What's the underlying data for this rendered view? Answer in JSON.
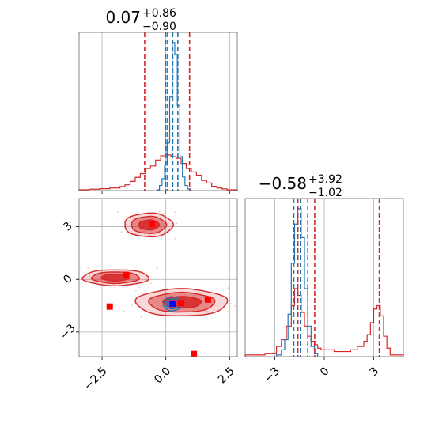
{
  "chart_data": {
    "type": "corner",
    "colors": {
      "posterior_a": "#d62728",
      "posterior_b": "#1f77b4"
    },
    "panels": [
      {
        "id": "hist-param-1",
        "type": "histogram",
        "title": {
          "value": "0.07",
          "plus": "+0.86",
          "minus": "−0.90"
        },
        "xlim": [
          -3.4,
          2.8
        ],
        "quantile_lines": {
          "posterior_a": [
            -0.83,
            0.07,
            0.93
          ],
          "posterior_b": [
            0.0,
            0.27,
            0.47
          ]
        },
        "series": [
          {
            "color_key": "posterior_a",
            "bins": [
              [
                -3.4,
                -3.0,
                0.005
              ],
              [
                -3.0,
                -2.6,
                0.008
              ],
              [
                -2.6,
                -2.2,
                0.011
              ],
              [
                -2.2,
                -1.8,
                0.015
              ],
              [
                -1.8,
                -1.6,
                0.024
              ],
              [
                -1.6,
                -1.4,
                0.034
              ],
              [
                -1.4,
                -1.2,
                0.054
              ],
              [
                -1.2,
                -1.0,
                0.078
              ],
              [
                -1.0,
                -0.8,
                0.1
              ],
              [
                -0.8,
                -0.6,
                0.13
              ],
              [
                -0.6,
                -0.4,
                0.145
              ],
              [
                -0.4,
                -0.2,
                0.18
              ],
              [
                -0.2,
                0.0,
                0.205
              ],
              [
                0.0,
                0.2,
                0.21
              ],
              [
                0.2,
                0.4,
                0.2
              ],
              [
                0.4,
                0.6,
                0.19
              ],
              [
                0.6,
                0.8,
                0.16
              ],
              [
                0.8,
                1.0,
                0.13
              ],
              [
                1.0,
                1.2,
                0.11
              ],
              [
                1.2,
                1.4,
                0.09
              ],
              [
                1.4,
                1.6,
                0.06
              ],
              [
                1.6,
                1.8,
                0.045
              ],
              [
                1.8,
                2.0,
                0.025
              ],
              [
                2.0,
                2.2,
                0.015
              ],
              [
                2.2,
                2.4,
                0.01
              ],
              [
                2.4,
                2.8,
                0.005
              ]
            ]
          },
          {
            "color_key": "posterior_b",
            "bins": [
              [
                -0.35,
                -0.25,
                0.005
              ],
              [
                -0.25,
                -0.15,
                0.03
              ],
              [
                -0.15,
                -0.05,
                0.07
              ],
              [
                -0.05,
                0.05,
                0.15
              ],
              [
                0.05,
                0.15,
                0.28
              ],
              [
                0.15,
                0.25,
                0.55
              ],
              [
                0.25,
                0.35,
                0.87
              ],
              [
                0.35,
                0.45,
                0.8
              ],
              [
                0.45,
                0.55,
                0.5
              ],
              [
                0.55,
                0.65,
                0.2
              ],
              [
                0.65,
                0.75,
                0.08
              ],
              [
                0.75,
                0.85,
                0.03
              ],
              [
                0.85,
                0.95,
                0.01
              ]
            ]
          }
        ]
      },
      {
        "id": "hist-param-2",
        "type": "histogram",
        "title": {
          "value": "−0.58",
          "plus": "+3.92",
          "minus": "−1.02"
        },
        "xlim": [
          -4.8,
          4.8
        ],
        "xticks": [
          -3,
          0,
          3
        ],
        "xtick_labels": [
          "−3",
          "0",
          "3"
        ],
        "quantile_lines": {
          "posterior_a": [
            -1.6,
            -0.58,
            3.34
          ],
          "posterior_b": [
            -1.85,
            -1.45,
            -1.0
          ]
        },
        "series": [
          {
            "color_key": "posterior_a",
            "bins": [
              [
                -4.8,
                -3.6,
                0.01
              ],
              [
                -3.6,
                -2.9,
                0.02
              ],
              [
                -2.9,
                -2.6,
                0.06
              ],
              [
                -2.6,
                -2.3,
                0.1
              ],
              [
                -2.3,
                -2.0,
                0.18
              ],
              [
                -2.0,
                -1.8,
                0.3
              ],
              [
                -1.8,
                -1.6,
                0.4
              ],
              [
                -1.6,
                -1.4,
                0.36
              ],
              [
                -1.4,
                -1.2,
                0.26
              ],
              [
                -1.2,
                -1.0,
                0.18
              ],
              [
                -1.0,
                -0.8,
                0.12
              ],
              [
                -0.8,
                -0.6,
                0.09
              ],
              [
                -0.6,
                -0.4,
                0.07
              ],
              [
                -0.4,
                -0.2,
                0.05
              ],
              [
                -0.2,
                0.6,
                0.04
              ],
              [
                0.6,
                1.6,
                0.03
              ],
              [
                1.6,
                2.0,
                0.04
              ],
              [
                2.0,
                2.4,
                0.06
              ],
              [
                2.4,
                2.6,
                0.09
              ],
              [
                2.6,
                2.8,
                0.13
              ],
              [
                2.8,
                3.0,
                0.2
              ],
              [
                3.0,
                3.2,
                0.28
              ],
              [
                3.2,
                3.4,
                0.3
              ],
              [
                3.4,
                3.6,
                0.24
              ],
              [
                3.6,
                3.8,
                0.12
              ],
              [
                3.8,
                4.0,
                0.05
              ],
              [
                4.0,
                4.8,
                0.01
              ]
            ]
          },
          {
            "color_key": "posterior_b",
            "bins": [
              [
                -2.9,
                -2.6,
                0.01
              ],
              [
                -2.6,
                -2.4,
                0.04
              ],
              [
                -2.4,
                -2.2,
                0.1
              ],
              [
                -2.2,
                -2.0,
                0.25
              ],
              [
                -2.0,
                -1.8,
                0.55
              ],
              [
                -1.8,
                -1.6,
                0.78
              ],
              [
                -1.6,
                -1.4,
                0.87
              ],
              [
                -1.4,
                -1.2,
                0.7
              ],
              [
                -1.2,
                -1.0,
                0.4
              ],
              [
                -1.0,
                -0.8,
                0.18
              ],
              [
                -0.8,
                -0.6,
                0.06
              ],
              [
                -0.6,
                -0.4,
                0.02
              ]
            ]
          }
        ]
      },
      {
        "id": "scatter-param-1-2",
        "type": "contour",
        "xlim": [
          -3.4,
          2.8
        ],
        "ylim": [
          -4.4,
          4.6
        ],
        "xticks": [
          -2.5,
          0.0,
          2.5
        ],
        "xtick_labels": [
          "−2.5",
          "0.0",
          "2.5"
        ],
        "yticks": [
          3,
          0,
          -3
        ],
        "ytick_labels": [
          "3",
          "0",
          "−3"
        ],
        "clusters": [
          {
            "color_key": "posterior_a",
            "center": [
              -0.65,
              3.1
            ],
            "spread": [
              1.9,
              1.35
            ]
          },
          {
            "color_key": "posterior_a",
            "center": [
              0.65,
              -1.3
            ],
            "spread": [
              3.6,
              1.55
            ]
          },
          {
            "color_key": "posterior_a",
            "center": [
              -2.0,
              0.1
            ],
            "spread": [
              2.6,
              0.9
            ]
          },
          {
            "color_key": "posterior_b",
            "center": [
              0.25,
              -1.4
            ],
            "spread": [
              0.7,
              0.8
            ]
          }
        ],
        "markers": [
          {
            "color_key": "posterior_a",
            "points": [
              [
                -0.55,
                3.15
              ],
              [
                -1.55,
                0.25
              ],
              [
                -2.2,
                -1.55
              ],
              [
                0.6,
                -1.35
              ],
              [
                1.65,
                -1.15
              ],
              [
                1.1,
                -4.25
              ]
            ]
          },
          {
            "color_key": "posterior_b",
            "points": [
              [
                0.27,
                -1.38
              ]
            ]
          }
        ]
      }
    ]
  }
}
